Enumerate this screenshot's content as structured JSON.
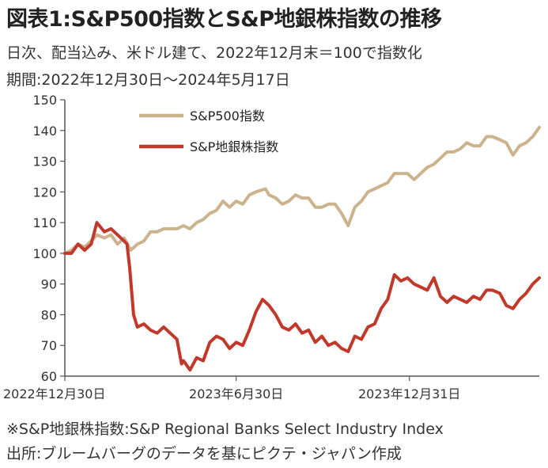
{
  "header": {
    "title": "図表1:S&P500指数とS&P地銀株指数の推移",
    "subtitle1": "日次、配当込み、米ドル建て、2022年12月末＝100で指数化",
    "subtitle2": "期間:2022年12月30日～2024年5月17日"
  },
  "footer": {
    "note": "※S&P地銀株指数:S&P Regional Banks Select Industry Index",
    "source": "出所:ブルームバーグのデータを基にピクテ・ジャパン作成"
  },
  "chart_data": {
    "type": "line",
    "ylim": [
      60,
      150
    ],
    "yticks": [
      60,
      70,
      80,
      90,
      100,
      110,
      120,
      130,
      140,
      150
    ],
    "xlim": [
      "2022-12-30",
      "2024-05-17"
    ],
    "xticks": [
      {
        "date": "2022-12-30",
        "label": "2022年12月30日"
      },
      {
        "date": "2023-06-30",
        "label": "2023年6月30日"
      },
      {
        "date": "2023-12-31",
        "label": "2023年12月31日"
      }
    ],
    "grid": false,
    "legend": "top-center",
    "series": [
      {
        "name": "S&P500指数",
        "color": "#cbb48d",
        "points": [
          [
            "2022-12-30",
            100
          ],
          [
            "2023-01-06",
            101
          ],
          [
            "2023-01-13",
            103
          ],
          [
            "2023-01-20",
            102
          ],
          [
            "2023-01-27",
            104
          ],
          [
            "2023-02-02",
            106
          ],
          [
            "2023-02-10",
            105
          ],
          [
            "2023-02-17",
            106
          ],
          [
            "2023-02-24",
            103
          ],
          [
            "2023-03-03",
            105
          ],
          [
            "2023-03-10",
            101
          ],
          [
            "2023-03-17",
            103
          ],
          [
            "2023-03-24",
            104
          ],
          [
            "2023-03-31",
            107
          ],
          [
            "2023-04-07",
            107
          ],
          [
            "2023-04-14",
            108
          ],
          [
            "2023-04-21",
            108
          ],
          [
            "2023-04-28",
            108
          ],
          [
            "2023-05-05",
            109
          ],
          [
            "2023-05-12",
            108
          ],
          [
            "2023-05-19",
            110
          ],
          [
            "2023-05-26",
            111
          ],
          [
            "2023-06-02",
            113
          ],
          [
            "2023-06-09",
            114
          ],
          [
            "2023-06-16",
            117
          ],
          [
            "2023-06-23",
            115
          ],
          [
            "2023-06-30",
            117
          ],
          [
            "2023-07-07",
            116
          ],
          [
            "2023-07-14",
            119
          ],
          [
            "2023-07-21",
            120
          ],
          [
            "2023-07-31",
            121
          ],
          [
            "2023-08-04",
            119
          ],
          [
            "2023-08-11",
            118
          ],
          [
            "2023-08-18",
            116
          ],
          [
            "2023-08-25",
            117
          ],
          [
            "2023-09-01",
            119
          ],
          [
            "2023-09-08",
            118
          ],
          [
            "2023-09-15",
            118
          ],
          [
            "2023-09-22",
            115
          ],
          [
            "2023-09-29",
            115
          ],
          [
            "2023-10-06",
            116
          ],
          [
            "2023-10-13",
            116
          ],
          [
            "2023-10-20",
            113
          ],
          [
            "2023-10-27",
            109
          ],
          [
            "2023-11-03",
            115
          ],
          [
            "2023-11-10",
            117
          ],
          [
            "2023-11-17",
            120
          ],
          [
            "2023-11-24",
            121
          ],
          [
            "2023-12-01",
            122
          ],
          [
            "2023-12-08",
            123
          ],
          [
            "2023-12-15",
            126
          ],
          [
            "2023-12-22",
            126
          ],
          [
            "2023-12-29",
            126
          ],
          [
            "2024-01-05",
            124
          ],
          [
            "2024-01-12",
            126
          ],
          [
            "2024-01-19",
            128
          ],
          [
            "2024-01-26",
            129
          ],
          [
            "2024-02-02",
            131
          ],
          [
            "2024-02-09",
            133
          ],
          [
            "2024-02-16",
            133
          ],
          [
            "2024-02-23",
            134
          ],
          [
            "2024-03-01",
            136
          ],
          [
            "2024-03-08",
            135
          ],
          [
            "2024-03-15",
            135
          ],
          [
            "2024-03-22",
            138
          ],
          [
            "2024-03-28",
            138
          ],
          [
            "2024-04-05",
            137
          ],
          [
            "2024-04-12",
            136
          ],
          [
            "2024-04-19",
            132
          ],
          [
            "2024-04-26",
            135
          ],
          [
            "2024-05-03",
            136
          ],
          [
            "2024-05-10",
            138
          ],
          [
            "2024-05-17",
            141
          ]
        ]
      },
      {
        "name": "S&P地銀株指数",
        "color": "#c0392b",
        "points": [
          [
            "2022-12-30",
            100
          ],
          [
            "2023-01-06",
            100
          ],
          [
            "2023-01-13",
            103
          ],
          [
            "2023-01-20",
            101
          ],
          [
            "2023-01-27",
            103
          ],
          [
            "2023-02-02",
            110
          ],
          [
            "2023-02-10",
            107
          ],
          [
            "2023-02-17",
            108
          ],
          [
            "2023-02-24",
            106
          ],
          [
            "2023-03-03",
            104
          ],
          [
            "2023-03-06",
            103
          ],
          [
            "2023-03-09",
            95
          ],
          [
            "2023-03-13",
            80
          ],
          [
            "2023-03-17",
            76
          ],
          [
            "2023-03-24",
            77
          ],
          [
            "2023-03-31",
            75
          ],
          [
            "2023-04-07",
            74
          ],
          [
            "2023-04-14",
            76
          ],
          [
            "2023-04-21",
            74
          ],
          [
            "2023-04-28",
            72
          ],
          [
            "2023-05-03",
            64
          ],
          [
            "2023-05-05",
            65
          ],
          [
            "2023-05-12",
            62
          ],
          [
            "2023-05-19",
            66
          ],
          [
            "2023-05-26",
            65
          ],
          [
            "2023-06-02",
            71
          ],
          [
            "2023-06-09",
            73
          ],
          [
            "2023-06-16",
            72
          ],
          [
            "2023-06-23",
            69
          ],
          [
            "2023-06-30",
            71
          ],
          [
            "2023-07-07",
            70
          ],
          [
            "2023-07-14",
            75
          ],
          [
            "2023-07-21",
            81
          ],
          [
            "2023-07-28",
            85
          ],
          [
            "2023-08-04",
            83
          ],
          [
            "2023-08-11",
            80
          ],
          [
            "2023-08-18",
            76
          ],
          [
            "2023-08-25",
            75
          ],
          [
            "2023-09-01",
            77
          ],
          [
            "2023-09-08",
            74
          ],
          [
            "2023-09-15",
            75
          ],
          [
            "2023-09-22",
            71
          ],
          [
            "2023-09-29",
            73
          ],
          [
            "2023-10-06",
            70
          ],
          [
            "2023-10-13",
            71
          ],
          [
            "2023-10-20",
            69
          ],
          [
            "2023-10-27",
            68
          ],
          [
            "2023-11-03",
            73
          ],
          [
            "2023-11-10",
            72
          ],
          [
            "2023-11-17",
            76
          ],
          [
            "2023-11-24",
            77
          ],
          [
            "2023-12-01",
            82
          ],
          [
            "2023-12-08",
            85
          ],
          [
            "2023-12-15",
            93
          ],
          [
            "2023-12-22",
            91
          ],
          [
            "2023-12-29",
            92
          ],
          [
            "2024-01-05",
            90
          ],
          [
            "2024-01-12",
            89
          ],
          [
            "2024-01-19",
            88
          ],
          [
            "2024-01-26",
            92
          ],
          [
            "2024-02-02",
            86
          ],
          [
            "2024-02-09",
            84
          ],
          [
            "2024-02-16",
            86
          ],
          [
            "2024-02-23",
            85
          ],
          [
            "2024-03-01",
            84
          ],
          [
            "2024-03-08",
            86
          ],
          [
            "2024-03-15",
            85
          ],
          [
            "2024-03-22",
            88
          ],
          [
            "2024-03-28",
            88
          ],
          [
            "2024-04-05",
            87
          ],
          [
            "2024-04-12",
            83
          ],
          [
            "2024-04-19",
            82
          ],
          [
            "2024-04-26",
            85
          ],
          [
            "2024-05-03",
            87
          ],
          [
            "2024-05-10",
            90
          ],
          [
            "2024-05-17",
            92
          ]
        ]
      }
    ]
  }
}
